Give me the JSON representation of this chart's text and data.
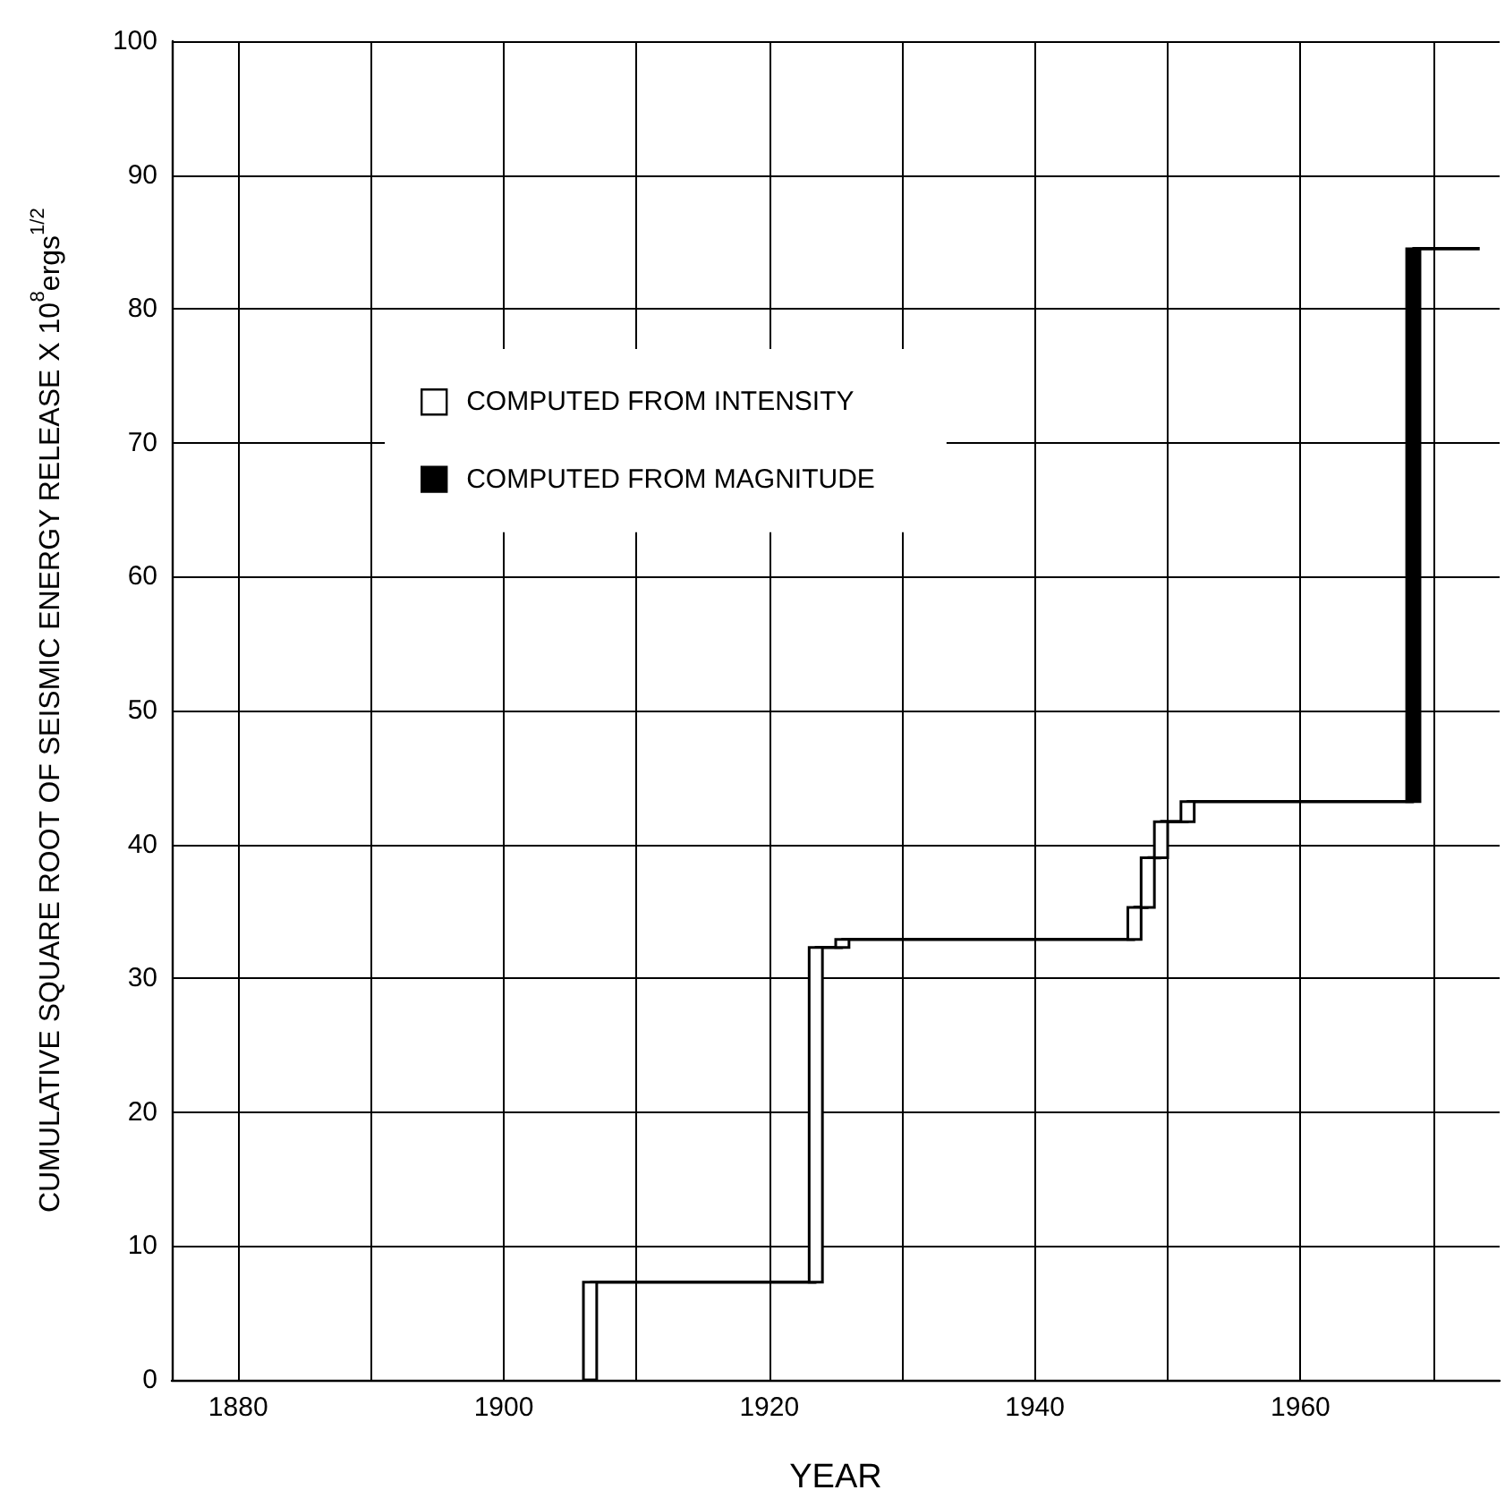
{
  "chart_data": {
    "type": "bar",
    "xlabel": "YEAR",
    "ylabel": "CUMULATIVE SQUARE ROOT OF SEISMIC ENERGY RELEASE X 10$^{8}$ergs$^{1/2}$",
    "xlim": [
      1875,
      1975
    ],
    "xticks": [
      1880,
      {
        "value": 1890,
        "label": null
      },
      1900,
      {
        "value": 1910,
        "label": null
      },
      1920,
      {
        "value": 1930,
        "label": null
      },
      1940,
      {
        "value": 1950,
        "label": null
      },
      1960,
      {
        "value": 1970,
        "label": null
      }
    ],
    "ylim": [
      0,
      100
    ],
    "yticks": [
      0,
      10,
      20,
      30,
      40,
      50,
      60,
      70,
      80,
      90,
      100
    ],
    "grid": true,
    "legend": "top",
    "series": [
      {
        "name": "COMPUTED FROM INTENSITY",
        "color": "#ffffff",
        "x": [
          1906.5,
          1923.5,
          1925.5,
          1947.5,
          1948.5,
          1949.5,
          1951.5
        ],
        "base": [
          0,
          7.3,
          32.3,
          32.9,
          35.3,
          39.0,
          41.7
        ],
        "values": [
          7.3,
          25.0,
          0.6,
          2.4,
          3.7,
          2.7,
          1.5
        ]
      },
      {
        "name": "COMPUTED FROM MAGNITUDE",
        "color": "#000000",
        "x": [
          1968.5
        ],
        "base": [
          43.2
        ],
        "values": [
          41.3
        ]
      },
      {
        "type": "step",
        "color": "#000000",
        "x": [
          1906.5,
          1923.5,
          1925.5,
          1947.5,
          1948.5,
          1949.5,
          1951.5,
          1968.5,
          1973.5
        ],
        "values": [
          7.3,
          32.3,
          32.9,
          35.3,
          39.0,
          41.7,
          43.2,
          84.5,
          84.5
        ]
      }
    ]
  }
}
